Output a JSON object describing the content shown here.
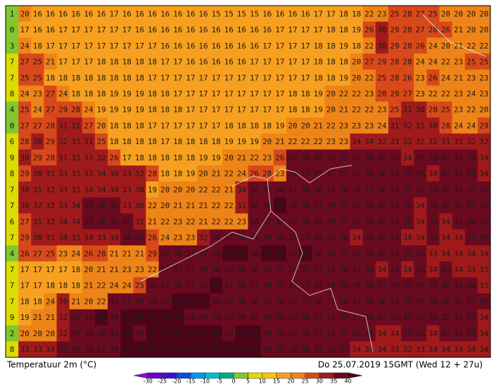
{
  "map": {
    "title": "Temperatuur 2m (°C)",
    "timestamp": "Do 25.07.2019 15GMT (Wed 12 + 27u)",
    "grid": [
      [
        1,
        20,
        16,
        16,
        16,
        16,
        16,
        16,
        17,
        16,
        16,
        16,
        16,
        16,
        16,
        16,
        15,
        15,
        15,
        15,
        16,
        16,
        16,
        16,
        17,
        17,
        18,
        18,
        22,
        23,
        25,
        28,
        27,
        25,
        20,
        20,
        20,
        20
      ],
      [
        0,
        17,
        16,
        16,
        17,
        17,
        17,
        17,
        17,
        17,
        16,
        16,
        16,
        16,
        16,
        16,
        16,
        16,
        16,
        16,
        16,
        17,
        17,
        17,
        17,
        18,
        18,
        19,
        26,
        30,
        29,
        28,
        27,
        28,
        26,
        21,
        20,
        20
      ],
      [
        3,
        24,
        18,
        17,
        17,
        17,
        17,
        17,
        17,
        17,
        17,
        17,
        16,
        16,
        16,
        16,
        16,
        16,
        16,
        16,
        17,
        17,
        17,
        17,
        18,
        18,
        19,
        18,
        22,
        30,
        29,
        28,
        26,
        24,
        20,
        21,
        22,
        22
      ],
      [
        7,
        27,
        25,
        21,
        17,
        17,
        17,
        18,
        18,
        18,
        18,
        18,
        17,
        17,
        16,
        16,
        16,
        16,
        16,
        17,
        17,
        17,
        17,
        17,
        18,
        18,
        18,
        20,
        27,
        29,
        28,
        28,
        24,
        24,
        22,
        23,
        25,
        25
      ],
      [
        7,
        25,
        25,
        18,
        18,
        18,
        18,
        18,
        18,
        18,
        18,
        17,
        17,
        17,
        17,
        17,
        17,
        17,
        17,
        17,
        17,
        17,
        17,
        17,
        18,
        18,
        19,
        20,
        22,
        25,
        28,
        26,
        23,
        26,
        24,
        21,
        23,
        23
      ],
      [
        8,
        24,
        23,
        27,
        24,
        18,
        18,
        18,
        19,
        19,
        19,
        18,
        18,
        17,
        17,
        17,
        17,
        17,
        17,
        17,
        17,
        17,
        18,
        18,
        19,
        20,
        22,
        22,
        23,
        28,
        29,
        27,
        23,
        22,
        22,
        23,
        24,
        23
      ],
      [
        4,
        25,
        24,
        27,
        29,
        28,
        24,
        19,
        19,
        19,
        19,
        18,
        18,
        18,
        17,
        17,
        17,
        17,
        17,
        17,
        17,
        17,
        18,
        18,
        19,
        20,
        21,
        22,
        22,
        23,
        25,
        31,
        30,
        28,
        25,
        23,
        22,
        20
      ],
      [
        0,
        27,
        27,
        28,
        31,
        31,
        27,
        20,
        18,
        18,
        18,
        17,
        17,
        17,
        17,
        17,
        17,
        18,
        18,
        18,
        18,
        19,
        20,
        20,
        21,
        22,
        23,
        23,
        23,
        24,
        31,
        32,
        31,
        30,
        28,
        24,
        24,
        29
      ],
      [
        6,
        28,
        30,
        29,
        32,
        33,
        31,
        25,
        18,
        18,
        18,
        18,
        17,
        18,
        18,
        18,
        18,
        19,
        19,
        19,
        20,
        21,
        22,
        22,
        22,
        23,
        23,
        34,
        34,
        32,
        33,
        33,
        32,
        32,
        31,
        31,
        32,
        32
      ],
      [
        9,
        30,
        29,
        28,
        31,
        33,
        33,
        32,
        26,
        17,
        18,
        18,
        18,
        18,
        18,
        19,
        19,
        20,
        21,
        22,
        23,
        26,
        35,
        35,
        35,
        35,
        35,
        36,
        36,
        35,
        35,
        34,
        35,
        35,
        35,
        35,
        35,
        34
      ],
      [
        8,
        29,
        30,
        31,
        33,
        33,
        33,
        34,
        30,
        33,
        32,
        28,
        18,
        18,
        19,
        20,
        21,
        22,
        24,
        26,
        28,
        23,
        36,
        37,
        38,
        37,
        37,
        35,
        35,
        36,
        35,
        35,
        35,
        34,
        35,
        35,
        35,
        34
      ],
      [
        7,
        30,
        31,
        32,
        33,
        33,
        34,
        34,
        34,
        33,
        30,
        19,
        20,
        20,
        20,
        22,
        22,
        21,
        34,
        36,
        37,
        38,
        37,
        38,
        38,
        37,
        38,
        38,
        37,
        36,
        35,
        35,
        35,
        35,
        35,
        35,
        35,
        35
      ],
      [
        7,
        30,
        32,
        32,
        33,
        34,
        35,
        36,
        35,
        33,
        30,
        22,
        20,
        21,
        21,
        21,
        22,
        22,
        31,
        38,
        39,
        40,
        38,
        38,
        37,
        38,
        37,
        36,
        35,
        35,
        35,
        35,
        34,
        35,
        35,
        36,
        35,
        35
      ],
      [
        6,
        27,
        31,
        32,
        34,
        34,
        35,
        36,
        36,
        35,
        31,
        21,
        22,
        23,
        22,
        21,
        22,
        22,
        23,
        36,
        37,
        38,
        39,
        39,
        39,
        38,
        37,
        36,
        35,
        35,
        35,
        35,
        34,
        35,
        34,
        35,
        36,
        36
      ],
      [
        7,
        29,
        30,
        31,
        34,
        33,
        34,
        33,
        34,
        36,
        35,
        26,
        24,
        23,
        23,
        32,
        36,
        37,
        38,
        39,
        38,
        39,
        38,
        37,
        39,
        37,
        36,
        34,
        35,
        35,
        35,
        34,
        34,
        35,
        34,
        34,
        35,
        36
      ],
      [
        4,
        26,
        27,
        25,
        23,
        24,
        26,
        28,
        21,
        21,
        21,
        29,
        39,
        38,
        37,
        37,
        39,
        40,
        40,
        38,
        40,
        40,
        39,
        40,
        38,
        38,
        37,
        36,
        35,
        35,
        35,
        35,
        35,
        33,
        34,
        34,
        34,
        34
      ],
      [
        7,
        17,
        17,
        17,
        17,
        18,
        20,
        21,
        21,
        23,
        23,
        22,
        37,
        37,
        37,
        38,
        38,
        39,
        38,
        36,
        37,
        37,
        38,
        37,
        37,
        37,
        36,
        37,
        36,
        34,
        35,
        34,
        35,
        34,
        35,
        34,
        33,
        33
      ],
      [
        7,
        17,
        17,
        18,
        18,
        18,
        21,
        22,
        24,
        24,
        25,
        36,
        37,
        38,
        37,
        37,
        40,
        37,
        35,
        37,
        38,
        39,
        37,
        37,
        39,
        38,
        39,
        38,
        36,
        37,
        36,
        35,
        36,
        35,
        36,
        35,
        36,
        33
      ],
      [
        7,
        18,
        18,
        24,
        30,
        21,
        20,
        22,
        35,
        37,
        38,
        39,
        39,
        40,
        41,
        41,
        39,
        38,
        38,
        38,
        37,
        38,
        36,
        37,
        36,
        37,
        36,
        37,
        36,
        36,
        35,
        35,
        35,
        35,
        36,
        36,
        35,
        35
      ],
      [
        9,
        19,
        21,
        21,
        32,
        37,
        39,
        40,
        39,
        41,
        40,
        40,
        40,
        41,
        39,
        39,
        39,
        39,
        39,
        39,
        39,
        39,
        39,
        38,
        37,
        37,
        37,
        37,
        38,
        37,
        36,
        35,
        35,
        35,
        35,
        35,
        35,
        34
      ],
      [
        2,
        20,
        20,
        20,
        32,
        37,
        38,
        38,
        39,
        40,
        39,
        41,
        41,
        40,
        40,
        42,
        40,
        39,
        41,
        40,
        39,
        39,
        39,
        39,
        37,
        37,
        37,
        36,
        35,
        34,
        34,
        35,
        35,
        34,
        35,
        35,
        35,
        34
      ],
      [
        8,
        33,
        33,
        34,
        35,
        36,
        36,
        37,
        39,
        40,
        40,
        41,
        41,
        41,
        42,
        41,
        41,
        40,
        41,
        40,
        39,
        39,
        38,
        38,
        35,
        36,
        37,
        34,
        34,
        34,
        33,
        32,
        33,
        34,
        34,
        34,
        34,
        34
      ]
    ],
    "legend": {
      "ticks": [
        -30,
        -25,
        -20,
        -15,
        -10,
        -5,
        0,
        5,
        10,
        15,
        20,
        25,
        30,
        35,
        40
      ],
      "colors": [
        "#9a00d0",
        "#6a00d0",
        "#3a10d0",
        "#0050e0",
        "#0095f0",
        "#00bcd0",
        "#00aa80",
        "#80c830",
        "#dcdc00",
        "#ffc400",
        "#f7a020",
        "#ee8418",
        "#d8481a",
        "#a01a1c",
        "#6a0a20",
        "#4c0418"
      ]
    }
  }
}
